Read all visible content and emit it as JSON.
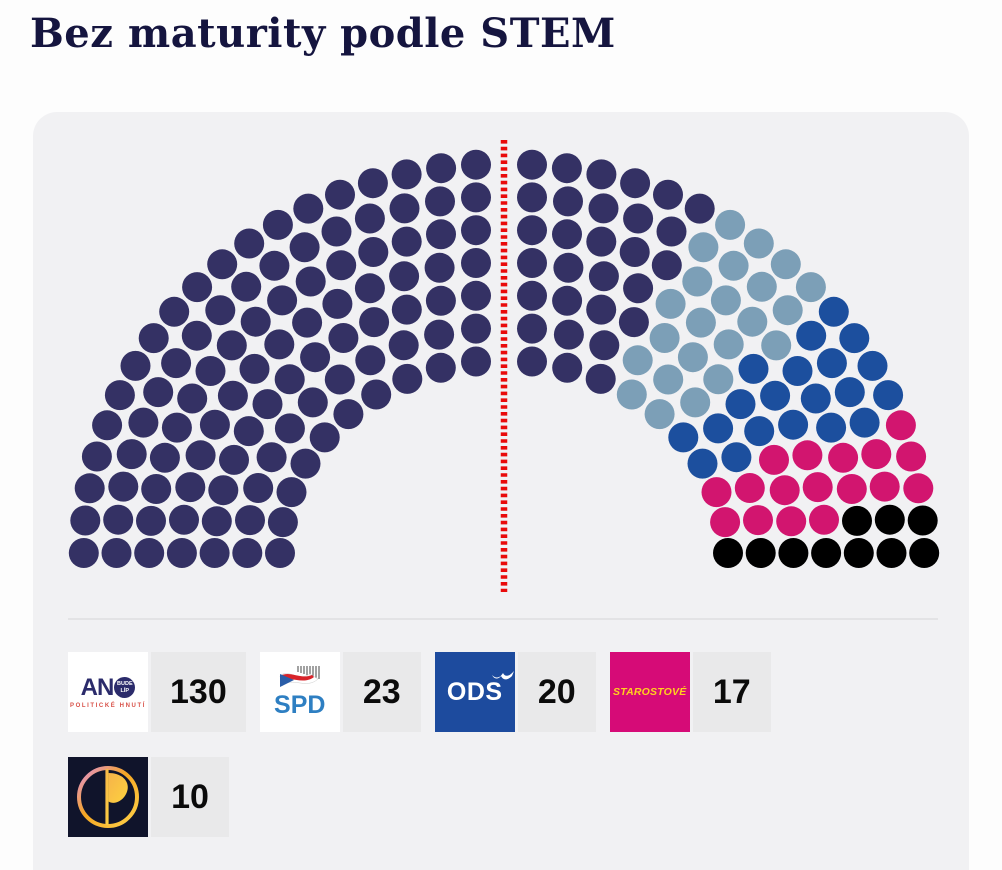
{
  "title": "Bez maturity podle STEM",
  "chart_data": {
    "type": "parliament",
    "title": "Bez maturity podle STEM",
    "total_seats": 200,
    "rows_per_half": [
      10,
      11,
      13,
      14,
      16,
      17,
      19
    ],
    "majority_line": {
      "present": true,
      "color": "#e90b0b"
    },
    "parties": [
      {
        "name": "ANO",
        "seats": 130,
        "color": "#343164"
      },
      {
        "name": "SPD",
        "seats": 23,
        "color": "#7c9fb7"
      },
      {
        "name": "ODS",
        "seats": 20,
        "color": "#1c4f9e"
      },
      {
        "name": "STAROSTOVÉ",
        "seats": 17,
        "color": "#d2156f"
      },
      {
        "name": "Piráti",
        "seats": 10,
        "color": "#000000"
      }
    ]
  },
  "legend": {
    "items": [
      {
        "party": "ANO",
        "count": "130"
      },
      {
        "party": "SPD",
        "count": "23"
      },
      {
        "party": "ODS",
        "count": "20"
      },
      {
        "party": "STAROSTOVÉ",
        "count": "17"
      },
      {
        "party": "Piráti",
        "count": "10"
      }
    ]
  },
  "logos": {
    "ano": {
      "main": "AN",
      "badge_top": "BUDE",
      "badge_bottom": "LÍP",
      "sub": "POLITICKÉ HNUTÍ"
    },
    "spd": {
      "label": "SPD"
    },
    "ods": {
      "label": "ODS"
    },
    "stan": {
      "label": "STAROSTOVÉ"
    }
  }
}
